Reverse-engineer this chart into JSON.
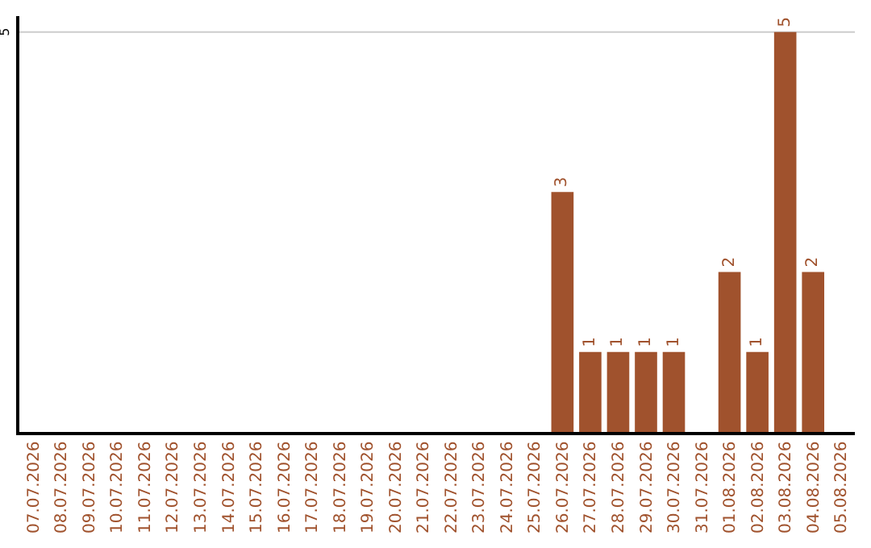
{
  "chart_data": {
    "type": "bar",
    "categories": [
      "07.07.2026",
      "08.07.2026",
      "09.07.2026",
      "10.07.2026",
      "11.07.2026",
      "12.07.2026",
      "13.07.2026",
      "14.07.2026",
      "15.07.2026",
      "16.07.2026",
      "17.07.2026",
      "18.07.2026",
      "19.07.2026",
      "20.07.2026",
      "21.07.2026",
      "22.07.2026",
      "23.07.2026",
      "24.07.2026",
      "25.07.2026",
      "26.07.2026",
      "27.07.2026",
      "28.07.2026",
      "29.07.2026",
      "30.07.2026",
      "31.07.2026",
      "01.08.2026",
      "02.08.2026",
      "03.08.2026",
      "04.08.2026",
      "05.08.2026"
    ],
    "values": [
      null,
      null,
      null,
      null,
      null,
      null,
      null,
      null,
      null,
      null,
      null,
      null,
      null,
      null,
      null,
      null,
      null,
      null,
      null,
      3,
      1,
      1,
      1,
      1,
      null,
      2,
      1,
      5,
      2,
      null
    ],
    "value_labels": [
      null,
      null,
      null,
      null,
      null,
      null,
      null,
      null,
      null,
      null,
      null,
      null,
      null,
      null,
      null,
      null,
      null,
      null,
      null,
      "3",
      "1",
      "1",
      "1",
      "1",
      null,
      "2",
      "1",
      "5",
      "2",
      null
    ],
    "color": "#a0522d",
    "ylim": [
      0,
      5.2
    ],
    "ref_lines": [
      {
        "axis": "y",
        "value": 5,
        "label": "5",
        "color": "#cccccc"
      }
    ],
    "legend": false
  }
}
